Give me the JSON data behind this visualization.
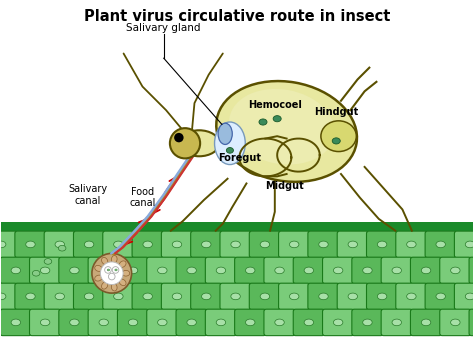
{
  "title": "Plant virus circulative route in insect",
  "title_fontsize": 10.5,
  "title_fontweight": "bold",
  "bg_color": "#ffffff",
  "body_color": "#e8e8a0",
  "body_edge_color": "#5a5000",
  "inner_body_color": "#f0f0c0",
  "leaf_green_dark": "#1a8a2a",
  "cell_green_light": "#7acc7a",
  "cell_green_mid": "#5ab85a",
  "cell_outline": "#1a7a1a",
  "foregut_color": "#ddeeff",
  "salivary_color": "#aaccee",
  "red_arrow": "#cc0000",
  "canal_blue": "#88aadd",
  "canal_red": "#cc3333",
  "virus_color": "#3a8a5a",
  "hindgut_color": "#d8d870",
  "labels": {
    "salivary_gland": "Salivary gland",
    "foregut": "Foregut",
    "hemocoel": "Hemocoel",
    "hindgut": "Hindgut",
    "midgut": "Midgut",
    "salivary_canal": "Salivary\ncanal",
    "food_canal": "Food\ncanal"
  },
  "xlim": [
    0,
    10
  ],
  "ylim": [
    0,
    7.3
  ]
}
